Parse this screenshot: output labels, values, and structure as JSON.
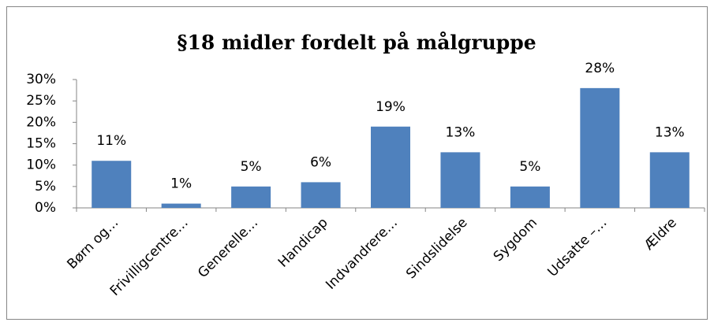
{
  "chart_data": {
    "type": "bar",
    "title": "§18 midler fordelt på målgruppe",
    "categories": [
      "Børn og…",
      "Frivilligcentre…",
      "Generelle…",
      "Handicap",
      "Indvandrere…",
      "Sindslidelse",
      "Sygdom",
      "Udsatte –…",
      "Ældre"
    ],
    "values": [
      11,
      1,
      5,
      6,
      19,
      13,
      5,
      28,
      13
    ],
    "value_labels": [
      "11%",
      "1%",
      "5%",
      "6%",
      "19%",
      "13%",
      "5%",
      "28%",
      "13%"
    ],
    "color": "#4f81bd",
    "ylim": [
      0,
      30
    ],
    "yticks": [
      {
        "value": 0,
        "label": "0%"
      },
      {
        "value": 5,
        "label": "5%"
      },
      {
        "value": 10,
        "label": "10%"
      },
      {
        "value": 15,
        "label": "15%"
      },
      {
        "value": 20,
        "label": "20%"
      },
      {
        "value": 25,
        "label": "25%"
      },
      {
        "value": 30,
        "label": "30%"
      }
    ],
    "grid": false
  }
}
